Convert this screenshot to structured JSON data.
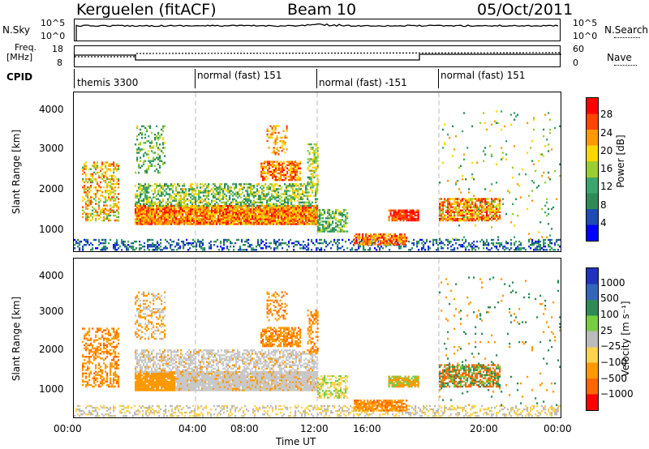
{
  "header": {
    "station": "Kerguelen (fitACF)",
    "beam": "Beam 10",
    "date": "05/Oct/2011"
  },
  "top_panels": {
    "nsky_label": "N.Sky",
    "nsky_ticks": [
      "10^5",
      "10^0"
    ],
    "nsearch_label": "N.Search",
    "nsearch_ticks": [
      "10^5",
      "10^0"
    ],
    "freq_label_line1": "Freq.",
    "freq_label_line2": "[MHz]",
    "freq_ticks": [
      "18",
      "8"
    ],
    "nave_label": "Nave",
    "nave_ticks": [
      "60",
      "0"
    ],
    "cpid_label": "CPID",
    "cpid_segments": [
      "themis 3300",
      "normal (fast) 151",
      "normal (fast) -151",
      "normal (fast) 151"
    ]
  },
  "colors": {
    "power_scale": [
      "#0000ff",
      "#1e4cb4",
      "#2e8b57",
      "#3aa66e",
      "#9acd32",
      "#ffd700",
      "#ff9900",
      "#ff4500",
      "#ff0000"
    ],
    "velocity_scale": [
      "#2233bb",
      "#3366bb",
      "#2e8b57",
      "#77cc44",
      "#bbbbbb",
      "#ffd24d",
      "#ff9900",
      "#ff6600",
      "#ff0000"
    ]
  },
  "chart_data": [
    {
      "type": "heatmap",
      "title": "",
      "xlabel": "Time UT",
      "ylabel": "Slant Range [km]",
      "x_ticks": [
        "00:00",
        "04:00",
        "08:00",
        "12:00",
        "16:00",
        "20:00",
        "00:00"
      ],
      "y_ticks": [
        "1000",
        "2000",
        "3000",
        "4000"
      ],
      "ylim": [
        180,
        4500
      ],
      "colorbar_label": "Power [dB]",
      "colorbar_ticks": [
        "4",
        "8",
        "12",
        "16",
        "20",
        "24",
        "28"
      ]
    },
    {
      "type": "heatmap",
      "title": "",
      "xlabel": "Time UT",
      "ylabel": "Slant Range [km]",
      "x_ticks": [
        "00:00",
        "04:00",
        "08:00",
        "12:00",
        "16:00",
        "20:00",
        "00:00"
      ],
      "y_ticks": [
        "1000",
        "2000",
        "3000",
        "4000"
      ],
      "ylim": [
        180,
        4500
      ],
      "colorbar_label": "Velocity [m s⁻¹]",
      "colorbar_ticks": [
        "1000",
        "500",
        "100",
        "25",
        "−25",
        "−100",
        "−500",
        "−1000"
      ]
    }
  ]
}
